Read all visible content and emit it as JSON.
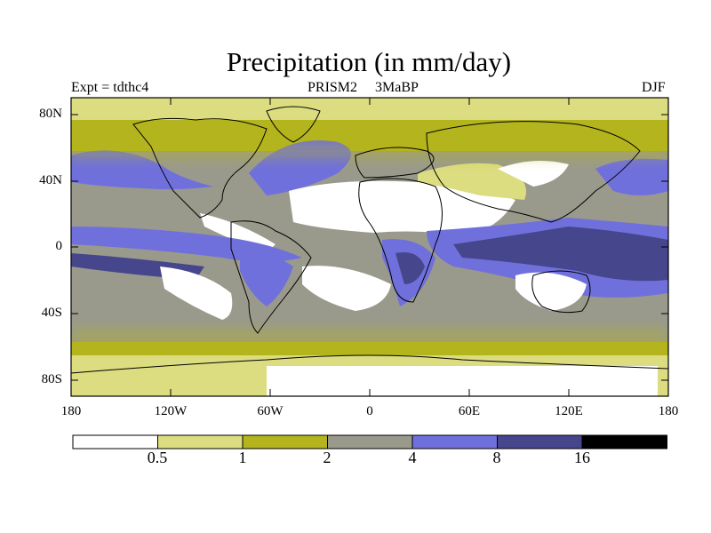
{
  "title": "Precipitation (in mm/day)",
  "experiment": "Expt = tdthc4",
  "run_label": "PRISM2     3MaBP",
  "season": "DJF",
  "map": {
    "projection": "cylindrical equidistant",
    "lon_range": [
      -180,
      180
    ],
    "lat_range": [
      -90,
      90
    ],
    "lat_tick_labels": [
      "80N",
      "40N",
      "0",
      "40S",
      "80S"
    ],
    "lon_tick_labels": [
      "180",
      "120W",
      "60W",
      "0",
      "60E",
      "120E",
      "180"
    ]
  },
  "colorbar": {
    "labels": [
      "0.5",
      "1",
      "2",
      "4",
      "8",
      "16"
    ],
    "colors": [
      "#ffffff",
      "#dcdc80",
      "#b4b41e",
      "#9a9a8c",
      "#7070dc",
      "#46468c",
      "#000000"
    ]
  }
}
